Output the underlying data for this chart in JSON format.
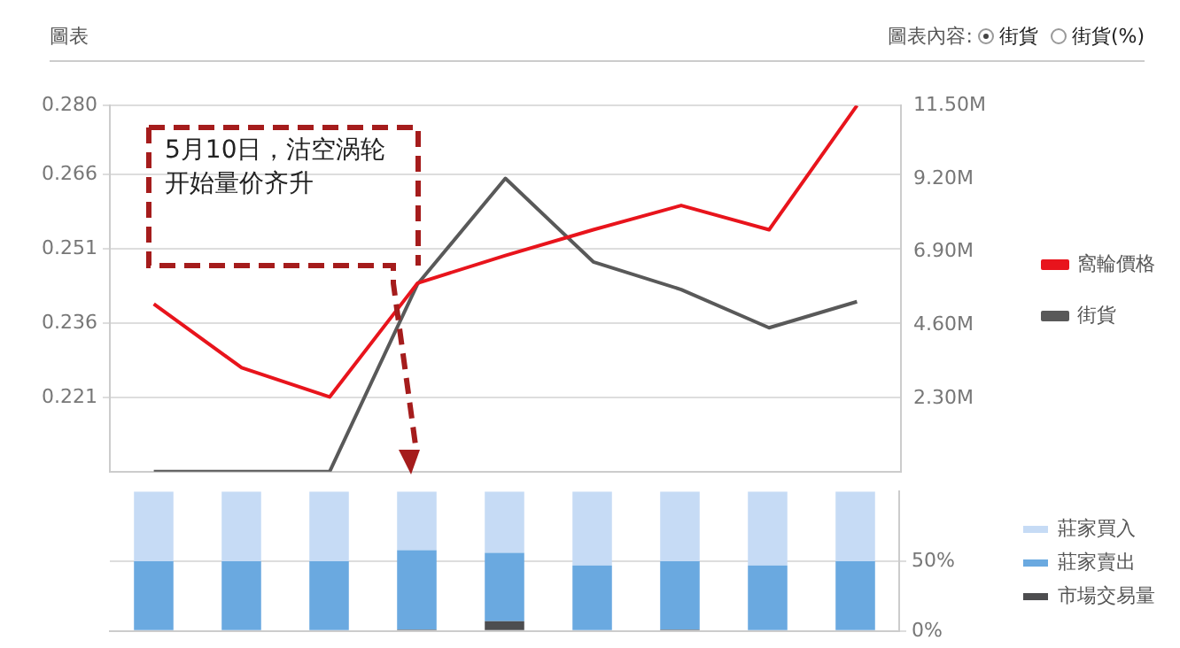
{
  "chart_data": [
    {
      "type": "line",
      "title": "圖表",
      "annotations": [
        "圖表內容:",
        "街貨",
        "街貨(%)",
        "5月10日，沽空涡轮开始量价齐升"
      ],
      "categories": [
        null,
        null,
        null,
        null,
        null,
        null,
        null,
        null,
        null
      ],
      "series": [
        {
          "name": "窩輪價格",
          "color": "#e8141c",
          "values": [
            0.2399,
            0.227,
            0.2211,
            0.2441,
            0.2497,
            0.2549,
            0.2598,
            0.2549,
            0.28
          ]
        },
        {
          "name": "街貨",
          "color": "#595959",
          "axis": "y2",
          "values": [
            0,
            0,
            0,
            5.89,
            9.21,
            6.59,
            5.72,
            4.52,
            5.34
          ]
        }
      ],
      "ylim": [
        0.206,
        0.28
      ],
      "yticks": [
        {
          "value": 0.221,
          "label": "0.221"
        },
        {
          "value": 0.236,
          "label": "0.236"
        },
        {
          "value": 0.251,
          "label": "0.251"
        },
        {
          "value": 0.266,
          "label": "0.266"
        },
        {
          "value": 0.28,
          "label": "0.280"
        }
      ],
      "y2lim": [
        0,
        11.5
      ],
      "y2ticks": [
        {
          "value": 2.3,
          "label": "2.30M"
        },
        {
          "value": 4.6,
          "label": "4.60M"
        },
        {
          "value": 6.9,
          "label": "6.90M"
        },
        {
          "value": 9.2,
          "label": "9.20M"
        },
        {
          "value": 11.5,
          "label": "11.50M"
        }
      ],
      "grid": "y",
      "legend": "right",
      "marker": "none",
      "line_style": "solid"
    },
    {
      "type": "bar",
      "stacked": true,
      "categories": [
        null,
        null,
        null,
        null,
        null,
        null,
        null,
        null,
        null
      ],
      "series": [
        {
          "name": "市場交易量",
          "color": "#4d4d4f",
          "values": [
            0,
            0,
            0,
            1,
            7,
            0,
            1,
            0,
            0
          ]
        },
        {
          "name": "莊家賣出",
          "color": "#6aa9e0",
          "values": [
            50,
            50,
            50,
            57,
            49,
            47,
            49,
            47,
            50
          ]
        },
        {
          "name": "莊家買入",
          "color": "#c6dbf5",
          "values": [
            50,
            50,
            50,
            42,
            44,
            53,
            50,
            53,
            50
          ]
        }
      ],
      "ylim": [
        0,
        100
      ],
      "yticks": [
        {
          "value": 0,
          "label": "0%"
        },
        {
          "value": 50,
          "label": "50%"
        }
      ],
      "grid": "y",
      "legend": "right"
    }
  ]
}
